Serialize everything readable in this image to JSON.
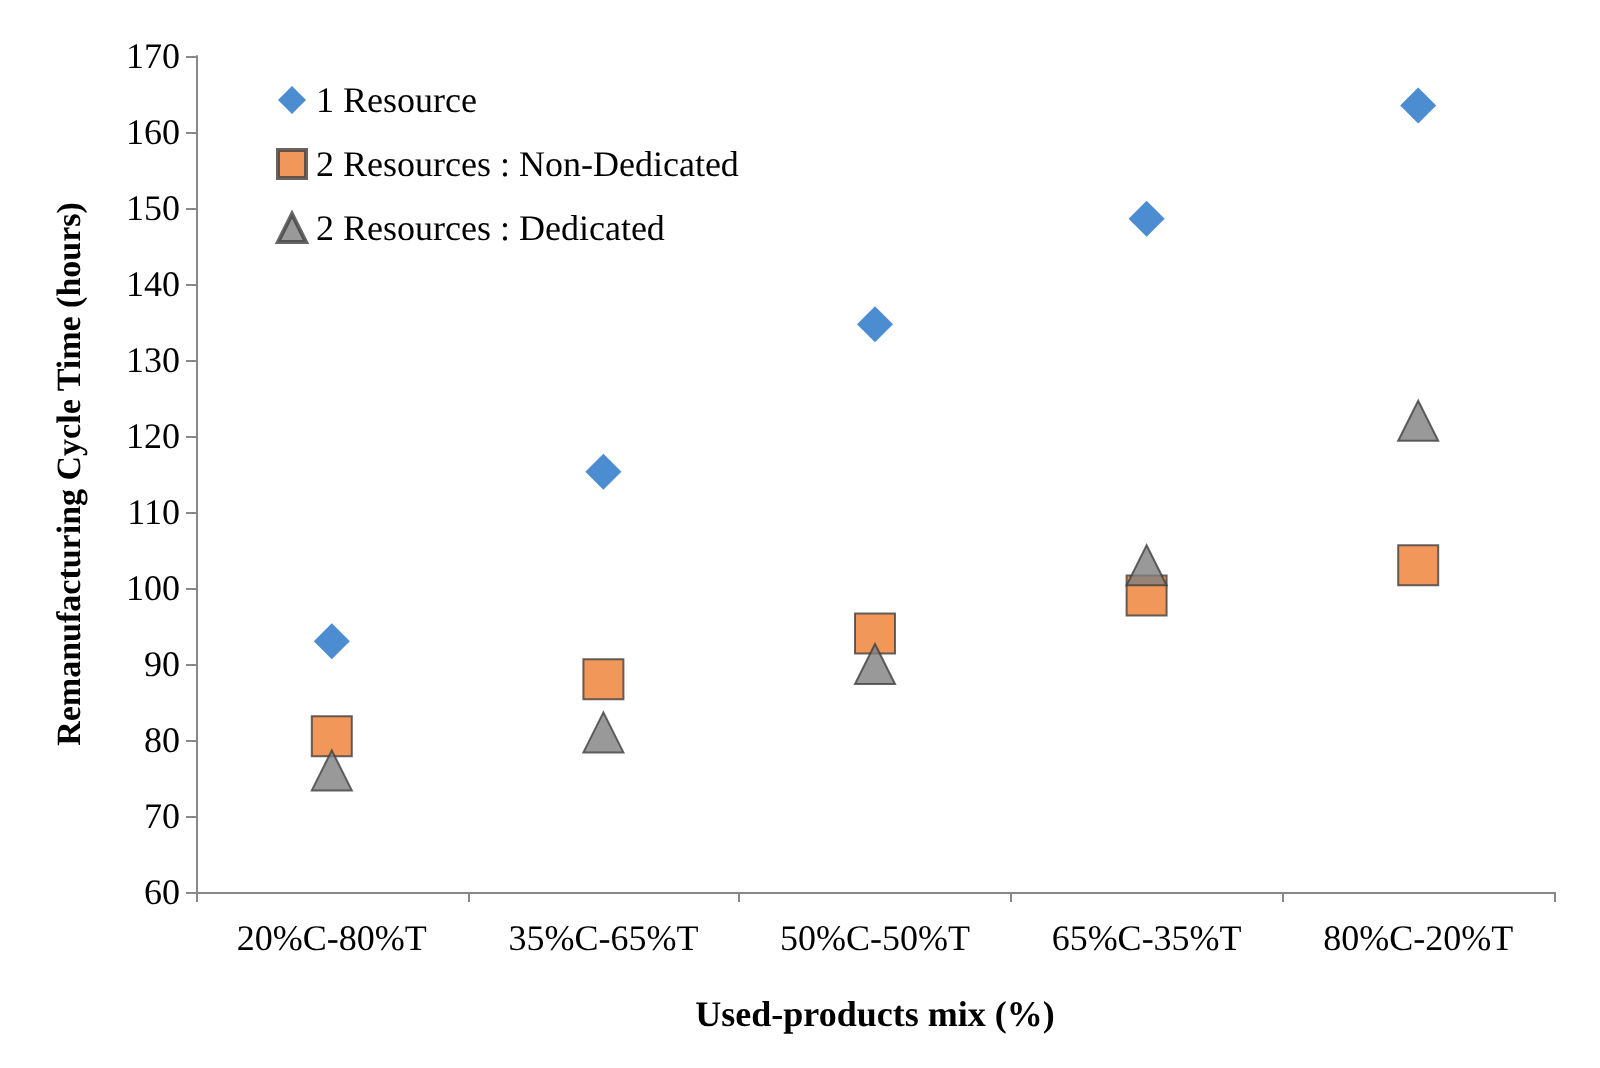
{
  "chart_data": {
    "type": "scatter",
    "xlabel": "Used-products mix (%)",
    "ylabel": "Remanufacturing Cycle Time (hours)",
    "categories": [
      "20%C-80%T",
      "35%C-65%T",
      "50%C-50%T",
      "65%C-35%T",
      "80%C-20%T"
    ],
    "series": [
      {
        "name": "1 Resource",
        "color": "#1f6fc5",
        "marker": "diamond",
        "values": [
          93,
          115.3,
          134.7,
          148.6,
          163.5
        ]
      },
      {
        "name": "2 Resources : Non-Dedicated",
        "color": "#ed7d31",
        "marker": "square",
        "values": [
          80.5,
          88,
          94,
          99,
          103
        ]
      },
      {
        "name": "2 Resources : Dedicated",
        "color": "#7f7f7f",
        "marker": "triangle",
        "values": [
          76,
          81,
          90,
          103,
          122
        ]
      }
    ],
    "ylim": [
      60,
      170
    ],
    "yticks": [
      60,
      70,
      80,
      90,
      100,
      110,
      120,
      130,
      140,
      150,
      160,
      170
    ],
    "grid": false,
    "legend": "top left"
  }
}
